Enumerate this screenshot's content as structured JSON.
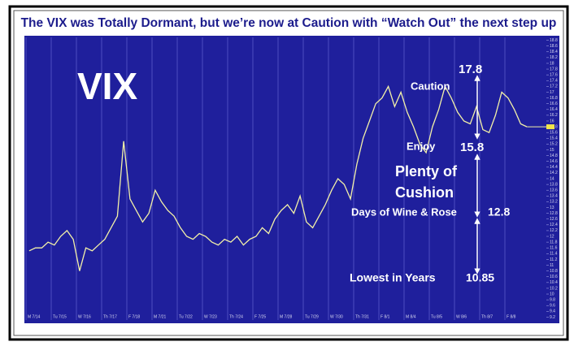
{
  "title": "The VIX was Totally Dormant, but we’re now at Caution with “Watch Out” the next step up",
  "chart_data": {
    "type": "line",
    "categories": [
      "M 7/14",
      null,
      null,
      null,
      "Tu 7/15",
      null,
      null,
      null,
      "W 7/16",
      null,
      null,
      null,
      "Th 7/17",
      null,
      null,
      null,
      "F 7/18",
      null,
      null,
      null,
      "M 7/21",
      null,
      null,
      null,
      "Tu 7/22",
      null,
      null,
      null,
      "W 7/23",
      null,
      null,
      null,
      "Th 7/24",
      null,
      null,
      null,
      "F 7/25",
      null,
      null,
      null,
      "M 7/28",
      null,
      null,
      null,
      "Tu 7/29",
      null,
      null,
      null,
      "W 7/30",
      null,
      null,
      null,
      "Th 7/31",
      null,
      null,
      null,
      "F 8/1",
      null,
      null,
      null,
      "M 8/4",
      null,
      null,
      null,
      "Tu 8/5",
      null,
      null,
      null,
      "W 8/6",
      null,
      null,
      null,
      "Th 8/7",
      null,
      null,
      null,
      "F 8/8",
      null,
      null,
      null
    ],
    "values": [
      11.5,
      11.6,
      11.6,
      11.8,
      11.7,
      12.0,
      12.2,
      11.9,
      10.8,
      11.6,
      11.5,
      11.7,
      11.9,
      12.3,
      12.7,
      15.3,
      13.3,
      12.9,
      12.5,
      12.8,
      13.6,
      13.2,
      12.9,
      12.7,
      12.3,
      12.0,
      11.9,
      12.1,
      12.0,
      11.8,
      11.7,
      11.9,
      11.8,
      12.0,
      11.7,
      11.9,
      12.0,
      12.3,
      12.1,
      12.6,
      12.9,
      13.1,
      12.8,
      13.4,
      12.5,
      12.3,
      12.7,
      13.1,
      13.6,
      14.0,
      13.8,
      13.3,
      14.5,
      15.4,
      16.0,
      16.6,
      16.8,
      17.2,
      16.5,
      17.0,
      16.3,
      15.8,
      15.2,
      14.9,
      15.8,
      16.4,
      17.2,
      16.8,
      16.3,
      16.0,
      15.9,
      16.5,
      15.7,
      15.6,
      16.2,
      17.0,
      16.8,
      16.4,
      15.9,
      15.8
    ],
    "color": "#f2f0a8",
    "ylim": [
      9.1,
      18.9
    ],
    "yticks": [
      9.2,
      9.4,
      9.6,
      9.8,
      10,
      10.2,
      10.4,
      10.6,
      10.8,
      11,
      11.2,
      11.4,
      11.6,
      11.8,
      12,
      12.2,
      12.4,
      12.6,
      12.8,
      13,
      13.2,
      13.4,
      13.6,
      13.8,
      14,
      14.2,
      14.4,
      14.6,
      14.8,
      15,
      15.2,
      15.4,
      15.6,
      15.8,
      16,
      16.2,
      16.4,
      16.6,
      16.8,
      17,
      17.2,
      17.4,
      17.6,
      17.8,
      18,
      18.2,
      18.4,
      18.6,
      18.8
    ],
    "annotations": [
      "VIX",
      "17.8",
      "Caution",
      "Enjoy",
      "15.8",
      "Plenty of",
      "Cushion",
      "Days of Wine & Rose",
      "12.8",
      "Lowest in Years",
      "10.85"
    ]
  }
}
